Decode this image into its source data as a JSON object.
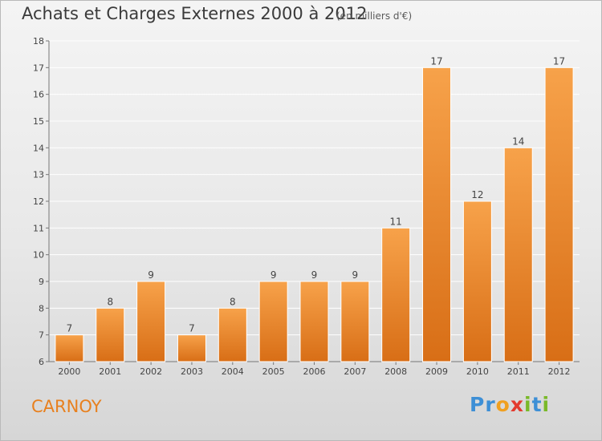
{
  "header": {
    "title": "Achats et Charges Externes 2000 à 2012",
    "subtitle": "(en milliers d'€)"
  },
  "footer": {
    "commune": "CARNOY",
    "logo_text": "Proxiti",
    "logo_letters": [
      {
        "ch": "P",
        "color": "#3d8fd6"
      },
      {
        "ch": "r",
        "color": "#3d8fd6"
      },
      {
        "ch": "o",
        "color": "#f0a020"
      },
      {
        "ch": "x",
        "color": "#e33a2e"
      },
      {
        "ch": "i",
        "color": "#7ab929"
      },
      {
        "ch": "t",
        "color": "#3d8fd6"
      },
      {
        "ch": "i",
        "color": "#7ab929"
      }
    ]
  },
  "colors": {
    "bar_top": "#f7a24a",
    "bar_bottom": "#d86e16",
    "bar_stroke": "#ffffff",
    "commune_color": "#e8801e"
  },
  "chart_data": {
    "type": "bar",
    "categories": [
      "2000",
      "2001",
      "2002",
      "2003",
      "2004",
      "2005",
      "2006",
      "2007",
      "2008",
      "2009",
      "2010",
      "2011",
      "2012"
    ],
    "values": [
      7,
      8,
      9,
      7,
      8,
      9,
      9,
      9,
      11,
      17,
      12,
      14,
      17
    ],
    "title": "Achats et Charges Externes 2000 à 2012",
    "ylim": [
      6,
      18
    ],
    "yticks": [
      6,
      7,
      8,
      9,
      10,
      11,
      12,
      13,
      14,
      15,
      16,
      17,
      18
    ],
    "grid": true
  }
}
